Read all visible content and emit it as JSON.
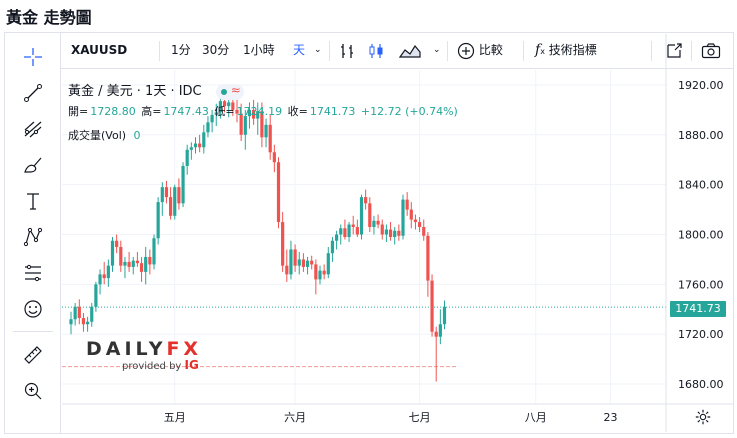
{
  "page_title": "黃金 走勢圖",
  "toolbar": {
    "symbol": "XAUUSD",
    "intervals": [
      "1分",
      "30分",
      "1小時",
      "天"
    ],
    "active_interval": "天",
    "compare_label": "比較",
    "indicators_label": "技術指標"
  },
  "legend": {
    "title": "黃金 / 美元 · 1天 · IDC",
    "open_label": "開=",
    "open": "1728.80",
    "high_label": "高=",
    "high": "1747.43",
    "low_label": "低=",
    "low": "1724.19",
    "close_label": "收=",
    "close": "1741.73",
    "change": "+12.72 (+0.74%)",
    "volume_label": "成交量(Vol)",
    "volume": "0"
  },
  "last_price_tag": "1741.73",
  "watermark": {
    "brand": "DAILY",
    "brand_fx": "FX",
    "provided_by": "provided by",
    "ig": "IG"
  },
  "colors": {
    "up": "#26a69a",
    "down": "#ef5350",
    "accent": "#2962ff"
  },
  "sidebar_tools": [
    "crosshair-icon",
    "trend-line-icon",
    "fib-icon",
    "brush-icon",
    "text-icon",
    "pattern-icon",
    "measure-lines-icon",
    "emoji-icon",
    "ruler-icon",
    "zoom-icon"
  ],
  "chart_data": {
    "type": "candlestick",
    "title": "",
    "ylim": [
      1664,
      1932
    ],
    "y_ticks": [
      1680,
      1720,
      1760,
      1800,
      1840,
      1880,
      1920
    ],
    "y_tick_labels": [
      "1680.00",
      "1720.00",
      "1760.00",
      "1800.00",
      "1840.00",
      "1880.00",
      "1920.00"
    ],
    "x_ticks": [
      {
        "index": 25,
        "label": "五月"
      },
      {
        "index": 54,
        "label": "六月"
      },
      {
        "index": 84,
        "label": "七月"
      },
      {
        "index": 112,
        "label": "八月"
      },
      {
        "index": 130,
        "label": "23"
      }
    ],
    "reference_lines": [
      {
        "value": 1741.73,
        "style": "dotted",
        "color": "#26a69a"
      },
      {
        "value": 1694,
        "style": "dashed",
        "color": "#ef9a9a"
      }
    ],
    "candles": [
      {
        "o": 1728,
        "h": 1738,
        "l": 1720,
        "c": 1732
      },
      {
        "o": 1732,
        "h": 1745,
        "l": 1727,
        "c": 1742
      },
      {
        "o": 1742,
        "h": 1748,
        "l": 1728,
        "c": 1733
      },
      {
        "o": 1733,
        "h": 1737,
        "l": 1722,
        "c": 1728
      },
      {
        "o": 1728,
        "h": 1734,
        "l": 1722,
        "c": 1730
      },
      {
        "o": 1730,
        "h": 1745,
        "l": 1726,
        "c": 1742
      },
      {
        "o": 1742,
        "h": 1762,
        "l": 1738,
        "c": 1760
      },
      {
        "o": 1760,
        "h": 1772,
        "l": 1752,
        "c": 1768
      },
      {
        "o": 1768,
        "h": 1778,
        "l": 1760,
        "c": 1765
      },
      {
        "o": 1765,
        "h": 1780,
        "l": 1758,
        "c": 1775
      },
      {
        "o": 1775,
        "h": 1798,
        "l": 1770,
        "c": 1795
      },
      {
        "o": 1795,
        "h": 1800,
        "l": 1785,
        "c": 1790
      },
      {
        "o": 1790,
        "h": 1795,
        "l": 1770,
        "c": 1775
      },
      {
        "o": 1775,
        "h": 1782,
        "l": 1765,
        "c": 1778
      },
      {
        "o": 1778,
        "h": 1786,
        "l": 1770,
        "c": 1774
      },
      {
        "o": 1774,
        "h": 1782,
        "l": 1768,
        "c": 1779
      },
      {
        "o": 1779,
        "h": 1786,
        "l": 1774,
        "c": 1777
      },
      {
        "o": 1777,
        "h": 1782,
        "l": 1762,
        "c": 1770
      },
      {
        "o": 1770,
        "h": 1790,
        "l": 1760,
        "c": 1782
      },
      {
        "o": 1782,
        "h": 1788,
        "l": 1768,
        "c": 1776
      },
      {
        "o": 1776,
        "h": 1800,
        "l": 1772,
        "c": 1797
      },
      {
        "o": 1797,
        "h": 1830,
        "l": 1792,
        "c": 1826
      },
      {
        "o": 1826,
        "h": 1842,
        "l": 1815,
        "c": 1838
      },
      {
        "o": 1838,
        "h": 1843,
        "l": 1825,
        "c": 1830
      },
      {
        "o": 1830,
        "h": 1838,
        "l": 1812,
        "c": 1815
      },
      {
        "o": 1815,
        "h": 1840,
        "l": 1812,
        "c": 1838
      },
      {
        "o": 1838,
        "h": 1845,
        "l": 1820,
        "c": 1825
      },
      {
        "o": 1825,
        "h": 1858,
        "l": 1822,
        "c": 1855
      },
      {
        "o": 1855,
        "h": 1872,
        "l": 1848,
        "c": 1868
      },
      {
        "o": 1868,
        "h": 1874,
        "l": 1860,
        "c": 1870
      },
      {
        "o": 1870,
        "h": 1878,
        "l": 1865,
        "c": 1873
      },
      {
        "o": 1873,
        "h": 1880,
        "l": 1866,
        "c": 1870
      },
      {
        "o": 1870,
        "h": 1888,
        "l": 1865,
        "c": 1882
      },
      {
        "o": 1882,
        "h": 1895,
        "l": 1878,
        "c": 1890
      },
      {
        "o": 1890,
        "h": 1900,
        "l": 1882,
        "c": 1896
      },
      {
        "o": 1896,
        "h": 1905,
        "l": 1887,
        "c": 1898
      },
      {
        "o": 1898,
        "h": 1912,
        "l": 1893,
        "c": 1907
      },
      {
        "o": 1907,
        "h": 1916,
        "l": 1898,
        "c": 1903
      },
      {
        "o": 1903,
        "h": 1910,
        "l": 1894,
        "c": 1906
      },
      {
        "o": 1906,
        "h": 1912,
        "l": 1895,
        "c": 1900
      },
      {
        "o": 1900,
        "h": 1908,
        "l": 1890,
        "c": 1897
      },
      {
        "o": 1897,
        "h": 1905,
        "l": 1875,
        "c": 1880
      },
      {
        "o": 1880,
        "h": 1900,
        "l": 1868,
        "c": 1895
      },
      {
        "o": 1895,
        "h": 1906,
        "l": 1885,
        "c": 1900
      },
      {
        "o": 1900,
        "h": 1908,
        "l": 1888,
        "c": 1893
      },
      {
        "o": 1893,
        "h": 1906,
        "l": 1880,
        "c": 1899
      },
      {
        "o": 1899,
        "h": 1906,
        "l": 1870,
        "c": 1878
      },
      {
        "o": 1878,
        "h": 1893,
        "l": 1870,
        "c": 1888
      },
      {
        "o": 1888,
        "h": 1896,
        "l": 1860,
        "c": 1866
      },
      {
        "o": 1866,
        "h": 1872,
        "l": 1850,
        "c": 1858
      },
      {
        "o": 1858,
        "h": 1862,
        "l": 1805,
        "c": 1810
      },
      {
        "o": 1810,
        "h": 1818,
        "l": 1770,
        "c": 1775
      },
      {
        "o": 1775,
        "h": 1788,
        "l": 1762,
        "c": 1768
      },
      {
        "o": 1768,
        "h": 1795,
        "l": 1764,
        "c": 1788
      },
      {
        "o": 1788,
        "h": 1792,
        "l": 1770,
        "c": 1775
      },
      {
        "o": 1775,
        "h": 1786,
        "l": 1768,
        "c": 1780
      },
      {
        "o": 1780,
        "h": 1785,
        "l": 1770,
        "c": 1774
      },
      {
        "o": 1774,
        "h": 1782,
        "l": 1768,
        "c": 1779
      },
      {
        "o": 1779,
        "h": 1783,
        "l": 1772,
        "c": 1776
      },
      {
        "o": 1776,
        "h": 1780,
        "l": 1752,
        "c": 1764
      },
      {
        "o": 1764,
        "h": 1775,
        "l": 1760,
        "c": 1771
      },
      {
        "o": 1771,
        "h": 1776,
        "l": 1764,
        "c": 1768
      },
      {
        "o": 1768,
        "h": 1790,
        "l": 1765,
        "c": 1785
      },
      {
        "o": 1785,
        "h": 1798,
        "l": 1778,
        "c": 1795
      },
      {
        "o": 1795,
        "h": 1803,
        "l": 1788,
        "c": 1800
      },
      {
        "o": 1800,
        "h": 1808,
        "l": 1792,
        "c": 1805
      },
      {
        "o": 1805,
        "h": 1812,
        "l": 1796,
        "c": 1798
      },
      {
        "o": 1798,
        "h": 1810,
        "l": 1794,
        "c": 1808
      },
      {
        "o": 1808,
        "h": 1815,
        "l": 1800,
        "c": 1806
      },
      {
        "o": 1806,
        "h": 1812,
        "l": 1798,
        "c": 1800
      },
      {
        "o": 1800,
        "h": 1832,
        "l": 1796,
        "c": 1830
      },
      {
        "o": 1830,
        "h": 1836,
        "l": 1820,
        "c": 1825
      },
      {
        "o": 1825,
        "h": 1830,
        "l": 1802,
        "c": 1806
      },
      {
        "o": 1806,
        "h": 1815,
        "l": 1800,
        "c": 1811
      },
      {
        "o": 1811,
        "h": 1816,
        "l": 1805,
        "c": 1808
      },
      {
        "o": 1808,
        "h": 1812,
        "l": 1796,
        "c": 1800
      },
      {
        "o": 1800,
        "h": 1808,
        "l": 1794,
        "c": 1804
      },
      {
        "o": 1804,
        "h": 1810,
        "l": 1795,
        "c": 1798
      },
      {
        "o": 1798,
        "h": 1806,
        "l": 1792,
        "c": 1803
      },
      {
        "o": 1803,
        "h": 1808,
        "l": 1795,
        "c": 1799
      },
      {
        "o": 1799,
        "h": 1832,
        "l": 1796,
        "c": 1828
      },
      {
        "o": 1828,
        "h": 1834,
        "l": 1815,
        "c": 1820
      },
      {
        "o": 1820,
        "h": 1826,
        "l": 1805,
        "c": 1812
      },
      {
        "o": 1812,
        "h": 1816,
        "l": 1804,
        "c": 1810
      },
      {
        "o": 1810,
        "h": 1814,
        "l": 1802,
        "c": 1806
      },
      {
        "o": 1806,
        "h": 1812,
        "l": 1795,
        "c": 1799
      },
      {
        "o": 1799,
        "h": 1802,
        "l": 1750,
        "c": 1763
      },
      {
        "o": 1763,
        "h": 1768,
        "l": 1718,
        "c": 1722
      },
      {
        "o": 1722,
        "h": 1726,
        "l": 1682,
        "c": 1718
      },
      {
        "o": 1718,
        "h": 1740,
        "l": 1712,
        "c": 1728
      },
      {
        "o": 1728,
        "h": 1747,
        "l": 1724,
        "c": 1742
      }
    ]
  }
}
